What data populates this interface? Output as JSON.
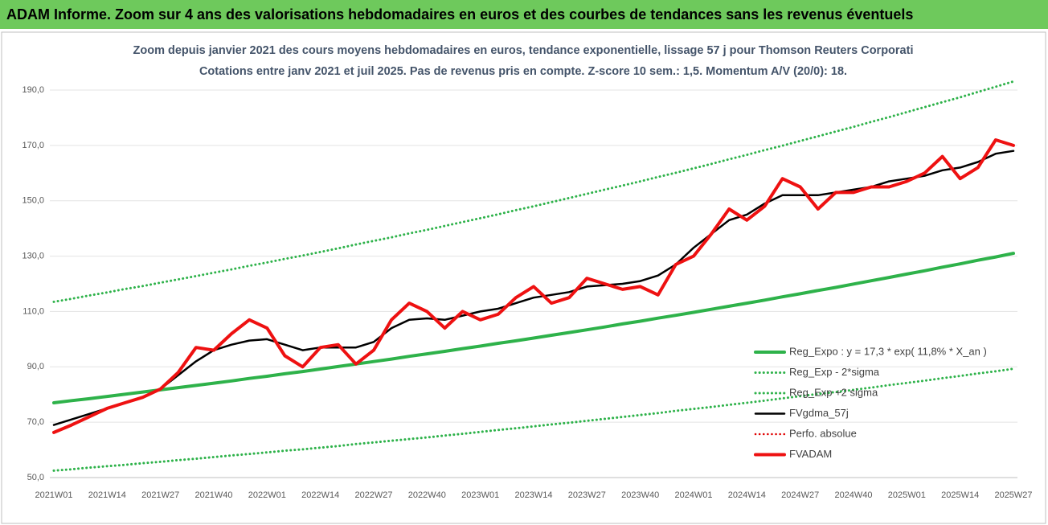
{
  "chart_data": {
    "type": "line",
    "title": "ADAM Informe. Zoom sur 4 ans des valorisations hebdomadaires en euros et des courbes de tendances sans les revenus éventuels",
    "subtitle": [
      "Zoom depuis janvier 2021 des cours moyens hebdomadaires en euros, tendance exponentielle, lissage 57 j pour Thomson Reuters Corporati",
      "Cotations entre janv 2021 et juil 2025. Pas de revenus pris en compte. Z-score 10 sem.: 1,5. Momentum A/V (20/0): 18."
    ],
    "categories": [
      "2021W01",
      null,
      null,
      "2021W14",
      null,
      null,
      "2021W27",
      null,
      null,
      "2021W40",
      null,
      null,
      "2022W01",
      null,
      null,
      "2022W14",
      null,
      null,
      "2022W27",
      null,
      null,
      "2022W40",
      null,
      null,
      "2023W01",
      null,
      null,
      "2023W14",
      null,
      null,
      "2023W27",
      null,
      null,
      "2023W40",
      null,
      null,
      "2024W01",
      null,
      null,
      "2024W14",
      null,
      null,
      "2024W27",
      null,
      null,
      "2024W40",
      null,
      null,
      "2025W01",
      null,
      null,
      "2025W14",
      null,
      null,
      "2025W27"
    ],
    "ylim": [
      50,
      190
    ],
    "yticks": [
      {
        "value": 50,
        "label": "50,0"
      },
      {
        "value": 70,
        "label": "70,0"
      },
      {
        "value": 90,
        "label": "90,0"
      },
      {
        "value": 110,
        "label": "110,0"
      },
      {
        "value": 130,
        "label": "130,0"
      },
      {
        "value": 150,
        "label": "150,0"
      },
      {
        "value": 170,
        "label": "170,0"
      },
      {
        "value": 190,
        "label": "190,0"
      }
    ],
    "grid": true,
    "legend": "bottom-right",
    "series": [
      {
        "name": "Reg_Expo : y = 17,3 * exp( 11,8% * X_an )",
        "color": "#2eb24a",
        "line_style": "solid",
        "width": 4,
        "values": [
          77.0,
          77.8,
          78.5,
          79.3,
          80.1,
          80.9,
          81.7,
          82.5,
          83.3,
          84.1,
          84.9,
          85.8,
          86.6,
          87.5,
          88.3,
          89.2,
          90.1,
          91.0,
          91.9,
          92.8,
          93.8,
          94.7,
          95.6,
          96.6,
          97.5,
          98.5,
          99.4,
          100.4,
          101.4,
          102.4,
          103.4,
          104.4,
          105.5,
          106.5,
          107.6,
          108.6,
          109.7,
          110.8,
          111.9,
          113.0,
          114.1,
          115.3,
          116.4,
          117.6,
          118.7,
          119.9,
          121.1,
          122.3,
          123.5,
          124.7,
          126.0,
          127.2,
          128.5,
          129.7,
          131.0
        ]
      },
      {
        "name": "Reg_Exp - 2*sigma",
        "color": "#2eb24a",
        "line_style": "dotted",
        "width": 3,
        "values": [
          52.5,
          53.0,
          53.6,
          54.1,
          54.6,
          55.2,
          55.7,
          56.3,
          56.8,
          57.4,
          58.0,
          58.5,
          59.1,
          59.7,
          60.2,
          60.8,
          61.4,
          62.1,
          62.7,
          63.3,
          63.9,
          64.5,
          65.2,
          65.8,
          66.5,
          67.2,
          67.8,
          68.5,
          69.2,
          69.8,
          70.5,
          71.2,
          71.9,
          72.6,
          73.3,
          74.1,
          74.8,
          75.5,
          76.3,
          77.0,
          77.8,
          78.6,
          79.4,
          80.2,
          80.9,
          81.7,
          82.5,
          83.4,
          84.2,
          85.0,
          85.9,
          86.7,
          87.6,
          88.4,
          89.3
        ]
      },
      {
        "name": "Reg_Exp +2 sigma",
        "color": "#2eb24a",
        "line_style": "dotted",
        "width": 3,
        "values": [
          113.5,
          114.6,
          115.8,
          116.9,
          118.1,
          119.2,
          120.4,
          121.6,
          122.8,
          124.0,
          125.2,
          126.5,
          127.7,
          129.0,
          130.2,
          131.5,
          132.8,
          134.2,
          135.5,
          136.8,
          138.2,
          139.5,
          140.9,
          142.3,
          143.7,
          145.1,
          146.6,
          148.0,
          149.5,
          151.0,
          152.5,
          154.0,
          155.5,
          157.0,
          158.6,
          160.1,
          161.7,
          163.3,
          165.0,
          166.6,
          168.3,
          169.9,
          171.6,
          173.3,
          175.0,
          176.7,
          178.5,
          180.2,
          182.0,
          183.8,
          185.6,
          187.4,
          189.3,
          191.2,
          193.1
        ]
      },
      {
        "name": "FVgdma_57j",
        "color": "#000000",
        "line_style": "solid",
        "width": 2.5,
        "values": [
          69,
          71,
          73,
          75,
          77,
          79,
          82,
          87,
          92,
          96,
          98,
          99.5,
          100,
          98,
          96,
          97,
          97,
          97,
          99,
          104,
          107,
          107.5,
          107,
          108.5,
          110,
          111,
          113,
          115,
          116,
          117,
          119,
          119.5,
          120,
          121,
          123,
          127,
          133,
          138,
          143,
          145,
          149,
          152,
          152,
          152,
          153,
          154,
          155,
          157,
          158,
          159,
          161,
          162,
          164,
          167,
          168
        ]
      },
      {
        "name": "Perfo. absolue",
        "color": "#e00000",
        "line_style": "dotted",
        "width": 2.5,
        "values": [
          null,
          null,
          null,
          null,
          null,
          null,
          null,
          null,
          null,
          null,
          null,
          null,
          null,
          null,
          null,
          null,
          null,
          null,
          null,
          null,
          null,
          null,
          null,
          null,
          null,
          null,
          null,
          null,
          null,
          null,
          null,
          null,
          null,
          null,
          null,
          null,
          null,
          null,
          null,
          null,
          null,
          null,
          null,
          null,
          null,
          null,
          null,
          null,
          null,
          null,
          null,
          null,
          null,
          null,
          null
        ]
      },
      {
        "name": "FVADAM",
        "color": "#ee1111",
        "line_style": "solid",
        "width": 4,
        "values": [
          66.3,
          69,
          72,
          75,
          77,
          79,
          82,
          88,
          97,
          96,
          102,
          107,
          104,
          94,
          90,
          97,
          98,
          91,
          96,
          107,
          113,
          110,
          104,
          110,
          107,
          109,
          115,
          119,
          113,
          115,
          122,
          120,
          118,
          119,
          116,
          127,
          130,
          138,
          147,
          143,
          148,
          158,
          155,
          147,
          153,
          153,
          155,
          155,
          157,
          160,
          166,
          158,
          162,
          172,
          170
        ]
      }
    ]
  }
}
